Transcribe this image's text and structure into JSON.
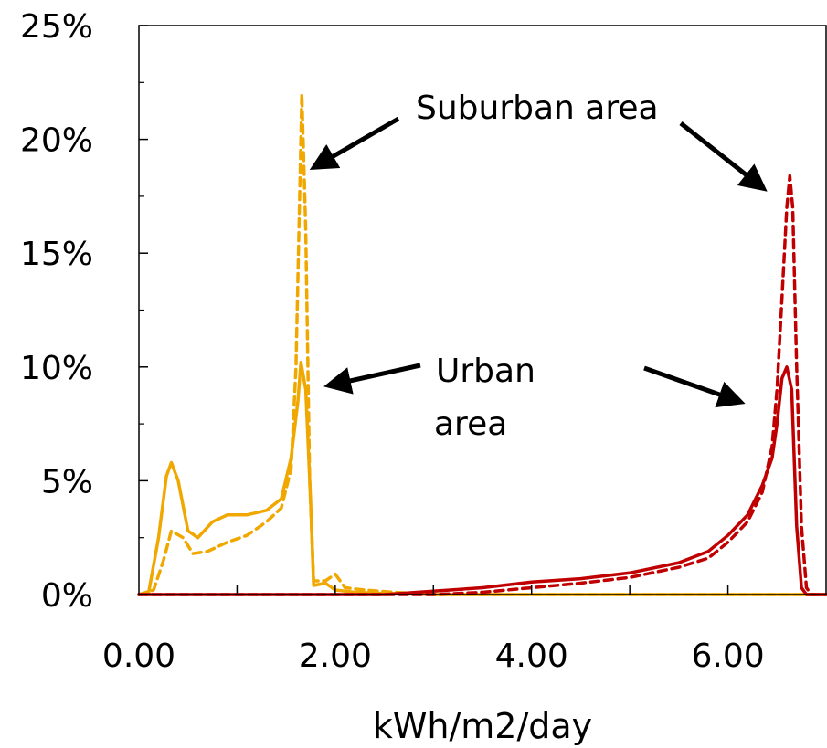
{
  "chart_data": {
    "type": "line",
    "title": "",
    "xlabel": "kWh/m2/day",
    "ylabel": "",
    "xlim": [
      0,
      7
    ],
    "ylim": [
      0,
      25
    ],
    "x_ticks": [
      0,
      2,
      4,
      6
    ],
    "x_tick_labels": [
      "0.00",
      "2.00",
      "4.00",
      "6.00"
    ],
    "y_ticks": [
      0,
      5,
      10,
      15,
      20,
      25
    ],
    "y_tick_labels": [
      "0%",
      "5%",
      "10%",
      "15%",
      "20%",
      "25%"
    ],
    "grid": false,
    "legend": "none",
    "series": [
      {
        "color": "#F0A800",
        "style": "solid",
        "points": [
          [
            0,
            0
          ],
          [
            0.1,
            0.1
          ],
          [
            0.2,
            2.5
          ],
          [
            0.28,
            5.2
          ],
          [
            0.33,
            5.8
          ],
          [
            0.4,
            5.0
          ],
          [
            0.5,
            2.8
          ],
          [
            0.6,
            2.5
          ],
          [
            0.75,
            3.2
          ],
          [
            0.9,
            3.5
          ],
          [
            1.1,
            3.5
          ],
          [
            1.3,
            3.7
          ],
          [
            1.45,
            4.2
          ],
          [
            1.55,
            6.0
          ],
          [
            1.62,
            8.5
          ],
          [
            1.65,
            10.2
          ],
          [
            1.7,
            9.0
          ],
          [
            1.75,
            4.0
          ],
          [
            1.78,
            0.4
          ],
          [
            1.9,
            0.5
          ],
          [
            2.0,
            0.2
          ],
          [
            2.2,
            0.1
          ],
          [
            2.5,
            0.05
          ],
          [
            3.0,
            0
          ],
          [
            7.0,
            0
          ]
        ]
      },
      {
        "color": "#F0A800",
        "style": "dashed",
        "points": [
          [
            0,
            0
          ],
          [
            0.15,
            0.2
          ],
          [
            0.25,
            1.5
          ],
          [
            0.33,
            2.8
          ],
          [
            0.45,
            2.5
          ],
          [
            0.55,
            1.8
          ],
          [
            0.7,
            1.9
          ],
          [
            0.9,
            2.3
          ],
          [
            1.1,
            2.6
          ],
          [
            1.3,
            3.2
          ],
          [
            1.45,
            3.8
          ],
          [
            1.55,
            5.5
          ],
          [
            1.6,
            10.0
          ],
          [
            1.64,
            18.0
          ],
          [
            1.66,
            22.0
          ],
          [
            1.7,
            16.0
          ],
          [
            1.74,
            5.0
          ],
          [
            1.78,
            0.6
          ],
          [
            1.9,
            0.6
          ],
          [
            2.0,
            0.9
          ],
          [
            2.1,
            0.3
          ],
          [
            2.3,
            0.2
          ],
          [
            2.6,
            0.1
          ],
          [
            3.0,
            0
          ],
          [
            7.0,
            0
          ]
        ]
      },
      {
        "color": "#C00000",
        "style": "solid",
        "points": [
          [
            0,
            0
          ],
          [
            2.5,
            0
          ],
          [
            3.0,
            0.15
          ],
          [
            3.5,
            0.3
          ],
          [
            4.0,
            0.55
          ],
          [
            4.5,
            0.7
          ],
          [
            5.0,
            0.95
          ],
          [
            5.5,
            1.4
          ],
          [
            5.8,
            1.9
          ],
          [
            6.0,
            2.6
          ],
          [
            6.2,
            3.5
          ],
          [
            6.35,
            4.8
          ],
          [
            6.45,
            6.0
          ],
          [
            6.5,
            7.5
          ],
          [
            6.55,
            9.5
          ],
          [
            6.6,
            10.0
          ],
          [
            6.65,
            9.0
          ],
          [
            6.7,
            3.0
          ],
          [
            6.75,
            0.3
          ],
          [
            6.8,
            0
          ],
          [
            7.0,
            0
          ]
        ]
      },
      {
        "color": "#C00000",
        "style": "dashed",
        "points": [
          [
            0,
            0
          ],
          [
            3.0,
            0
          ],
          [
            3.5,
            0.1
          ],
          [
            4.0,
            0.3
          ],
          [
            4.5,
            0.5
          ],
          [
            5.0,
            0.75
          ],
          [
            5.5,
            1.2
          ],
          [
            5.8,
            1.6
          ],
          [
            6.0,
            2.3
          ],
          [
            6.2,
            3.2
          ],
          [
            6.35,
            4.5
          ],
          [
            6.45,
            6.5
          ],
          [
            6.5,
            9.0
          ],
          [
            6.55,
            13.0
          ],
          [
            6.6,
            17.0
          ],
          [
            6.63,
            18.4
          ],
          [
            6.66,
            17.0
          ],
          [
            6.7,
            10.0
          ],
          [
            6.75,
            3.0
          ],
          [
            6.8,
            0.3
          ],
          [
            6.85,
            0
          ],
          [
            7.0,
            0
          ]
        ]
      }
    ],
    "annotations": [
      {
        "lines": [
          "Suburban area"
        ]
      },
      {
        "lines": [
          "Urban",
          "area"
        ]
      }
    ]
  }
}
